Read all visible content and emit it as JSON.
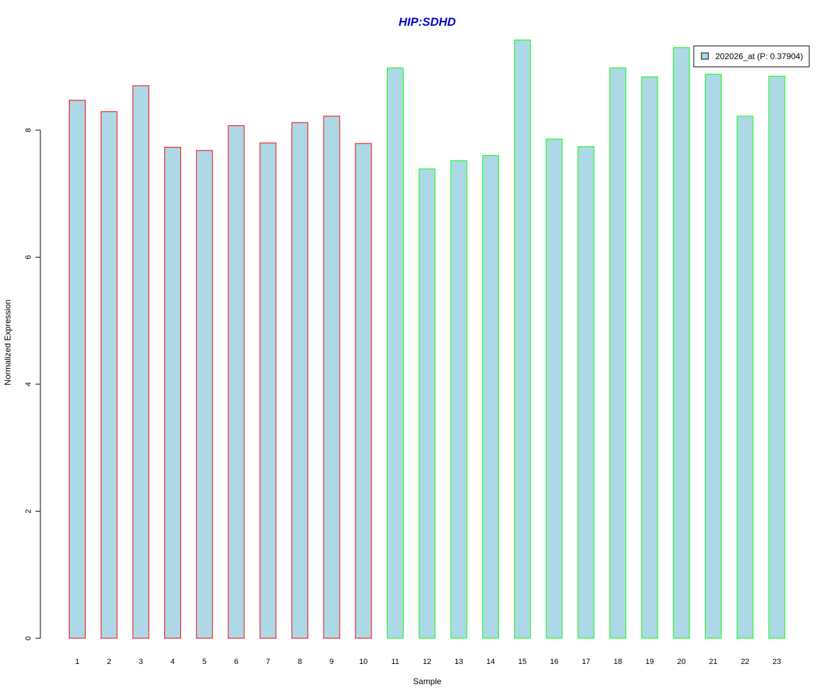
{
  "colors": {
    "title": "#0000cc",
    "bar_fill": "#add8e6",
    "group1_border": "#ff0000",
    "group2_border": "#00ff00",
    "axis": "#000000"
  },
  "chart_data": {
    "type": "bar",
    "title": "HIP:SDHD",
    "xlabel": "Sample",
    "ylabel": "Normalized Expression",
    "ylim": [
      0,
      9.5
    ],
    "yticks": [
      "0",
      "2",
      "4",
      "6",
      "8"
    ],
    "grid": false,
    "legend_position": "top-right",
    "categories": [
      "1",
      "2",
      "3",
      "4",
      "5",
      "6",
      "7",
      "8",
      "9",
      "10",
      "11",
      "12",
      "13",
      "14",
      "15",
      "16",
      "17",
      "18",
      "19",
      "20",
      "21",
      "22",
      "23"
    ],
    "series": [
      {
        "name": "202026_at (P: 0.37904)",
        "values": [
          8.47,
          8.29,
          8.7,
          7.73,
          7.68,
          8.07,
          7.8,
          8.12,
          8.22,
          7.79,
          8.98,
          7.39,
          7.52,
          7.6,
          9.42,
          7.86,
          7.74,
          8.98,
          8.84,
          9.3,
          8.88,
          8.22,
          8.85
        ]
      }
    ],
    "bar_groups": [
      "group1",
      "group1",
      "group1",
      "group1",
      "group1",
      "group1",
      "group1",
      "group1",
      "group1",
      "group1",
      "group2",
      "group2",
      "group2",
      "group2",
      "group2",
      "group2",
      "group2",
      "group2",
      "group2",
      "group2",
      "group2",
      "group2",
      "group2"
    ]
  }
}
